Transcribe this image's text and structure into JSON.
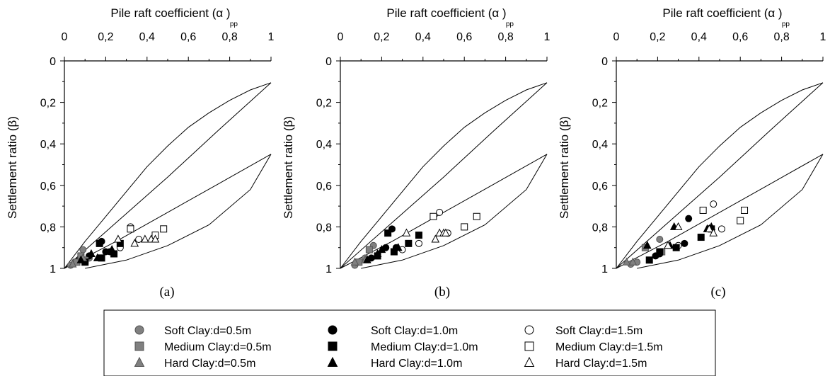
{
  "figure": {
    "xlabel_main": "Pile raft coefficient (α",
    "xlabel_sub": "pp",
    "xlabel_close": ")",
    "ylabel": "Settlement ratio (β)"
  },
  "legend": {
    "items": [
      {
        "label": "Soft Clay:d=0.5m",
        "marker": "circle",
        "fill": "#808080"
      },
      {
        "label": "Soft Clay:d=1.0m",
        "marker": "circle",
        "fill": "#000000"
      },
      {
        "label": "Soft Clay:d=1.5m",
        "marker": "circle",
        "fill": "#ffffff"
      },
      {
        "label": "Medium Clay:d=0.5m",
        "marker": "square",
        "fill": "#808080"
      },
      {
        "label": "Medium Clay:d=1.0m",
        "marker": "square",
        "fill": "#000000"
      },
      {
        "label": "Medium Clay:d=1.5m",
        "marker": "square",
        "fill": "#ffffff"
      },
      {
        "label": "Hard Clay:d=0.5m",
        "marker": "triangle",
        "fill": "#808080"
      },
      {
        "label": "Hard Clay:d=1.0m",
        "marker": "triangle",
        "fill": "#000000"
      },
      {
        "label": "Hard Clay:d=1.5m",
        "marker": "triangle",
        "fill": "#ffffff"
      }
    ]
  },
  "chart_data": [
    {
      "panel": "(a)",
      "type": "scatter",
      "xlabel": "Pile raft coefficient (αpp)",
      "ylabel": "Settlement ratio (β)",
      "xlim": [
        0,
        1
      ],
      "ylim": [
        0,
        1
      ],
      "y_inverted": true,
      "x_axis_position": "top",
      "xticks": [
        "0",
        "0,2",
        "0,4",
        "0,6",
        "0,8",
        "1"
      ],
      "yticks": [
        "0",
        "0,2",
        "0,4",
        "0,6",
        "0,8",
        "1"
      ],
      "envelope_curves": [
        {
          "x": [
            0,
            0.1,
            0.2,
            0.3,
            0.4,
            0.5,
            0.6,
            0.7,
            0.8,
            0.9,
            1.0
          ],
          "y": [
            1.0,
            0.87,
            0.75,
            0.63,
            0.51,
            0.41,
            0.32,
            0.25,
            0.19,
            0.14,
            0.105
          ]
        },
        {
          "x": [
            0,
            0.25,
            0.5,
            0.75,
            1.0
          ],
          "y": [
            1.0,
            0.78,
            0.56,
            0.33,
            0.105
          ]
        },
        {
          "x": [
            0,
            0.25,
            0.5,
            0.75,
            1.0
          ],
          "y": [
            1.0,
            0.87,
            0.73,
            0.59,
            0.45
          ]
        },
        {
          "x": [
            0.1,
            0.3,
            0.5,
            0.7,
            0.9,
            1.0
          ],
          "y": [
            1.0,
            0.96,
            0.89,
            0.79,
            0.62,
            0.45
          ]
        }
      ],
      "series": [
        {
          "name": "Soft Clay:d=0.5m",
          "x": [
            0.03,
            0.05,
            0.09,
            0.12
          ],
          "y": [
            0.985,
            0.97,
            0.91,
            0.95
          ]
        },
        {
          "name": "Soft Clay:d=1.0m",
          "x": [
            0.07,
            0.12,
            0.18,
            0.2,
            0.22
          ],
          "y": [
            0.96,
            0.94,
            0.87,
            0.92,
            0.92
          ]
        },
        {
          "name": "Soft Clay:d=1.5m",
          "x": [
            0.27,
            0.32,
            0.36
          ],
          "y": [
            0.9,
            0.8,
            0.86
          ]
        },
        {
          "name": "Medium Clay:d=0.5m",
          "x": [
            0.06,
            0.08,
            0.1
          ],
          "y": [
            0.97,
            0.94,
            0.96
          ]
        },
        {
          "name": "Medium Clay:d=1.0m",
          "x": [
            0.1,
            0.17,
            0.18,
            0.24,
            0.27
          ],
          "y": [
            0.97,
            0.88,
            0.95,
            0.93,
            0.88
          ]
        },
        {
          "name": "Medium Clay:d=1.5m",
          "x": [
            0.32,
            0.44,
            0.48
          ],
          "y": [
            0.81,
            0.84,
            0.81
          ]
        },
        {
          "name": "Hard Clay:d=0.5m",
          "x": [
            0.04,
            0.09
          ],
          "y": [
            0.98,
            0.95
          ]
        },
        {
          "name": "Hard Clay:d=1.0m",
          "x": [
            0.08,
            0.13,
            0.16,
            0.23
          ],
          "y": [
            0.96,
            0.93,
            0.95,
            0.91
          ]
        },
        {
          "name": "Hard Clay:d=1.5m",
          "x": [
            0.26,
            0.34,
            0.39,
            0.42,
            0.44
          ],
          "y": [
            0.86,
            0.88,
            0.86,
            0.86,
            0.86
          ]
        }
      ]
    },
    {
      "panel": "(b)",
      "type": "scatter",
      "xlabel": "Pile raft coefficient (αpp)",
      "ylabel": "Settlement ratio (β)",
      "xlim": [
        0,
        1
      ],
      "ylim": [
        0,
        1
      ],
      "y_inverted": true,
      "x_axis_position": "top",
      "xticks": [
        "0",
        "0,2",
        "0,4",
        "0,6",
        "0,8",
        "1"
      ],
      "yticks": [
        "0",
        "0,2",
        "0,4",
        "0,6",
        "0,8",
        "1"
      ],
      "envelope_curves": [
        {
          "x": [
            0,
            0.1,
            0.2,
            0.3,
            0.4,
            0.5,
            0.6,
            0.7,
            0.8,
            0.9,
            1.0
          ],
          "y": [
            1.0,
            0.87,
            0.75,
            0.63,
            0.51,
            0.41,
            0.32,
            0.25,
            0.19,
            0.14,
            0.105
          ]
        },
        {
          "x": [
            0,
            0.25,
            0.5,
            0.75,
            1.0
          ],
          "y": [
            1.0,
            0.78,
            0.56,
            0.33,
            0.105
          ]
        },
        {
          "x": [
            0,
            0.25,
            0.5,
            0.75,
            1.0
          ],
          "y": [
            1.0,
            0.87,
            0.73,
            0.59,
            0.45
          ]
        },
        {
          "x": [
            0.1,
            0.3,
            0.5,
            0.7,
            0.9,
            1.0
          ],
          "y": [
            1.0,
            0.96,
            0.89,
            0.79,
            0.62,
            0.45
          ]
        }
      ],
      "series": [
        {
          "name": "Soft Clay:d=0.5m",
          "x": [
            0.07,
            0.12,
            0.16
          ],
          "y": [
            0.985,
            0.95,
            0.89
          ]
        },
        {
          "name": "Soft Clay:d=1.0m",
          "x": [
            0.15,
            0.22,
            0.25,
            0.27
          ],
          "y": [
            0.95,
            0.9,
            0.81,
            0.9
          ]
        },
        {
          "name": "Soft Clay:d=1.5m",
          "x": [
            0.3,
            0.38,
            0.48,
            0.52
          ],
          "y": [
            0.91,
            0.88,
            0.73,
            0.83
          ]
        },
        {
          "name": "Medium Clay:d=0.5m",
          "x": [
            0.09,
            0.14
          ],
          "y": [
            0.97,
            0.91
          ]
        },
        {
          "name": "Medium Clay:d=1.0m",
          "x": [
            0.18,
            0.23,
            0.26,
            0.33,
            0.38
          ],
          "y": [
            0.94,
            0.83,
            0.92,
            0.88,
            0.84
          ]
        },
        {
          "name": "Medium Clay:d=1.5m",
          "x": [
            0.45,
            0.6,
            0.66
          ],
          "y": [
            0.75,
            0.8,
            0.75
          ]
        },
        {
          "name": "Hard Clay:d=0.5m",
          "x": [
            0.07,
            0.12
          ],
          "y": [
            0.97,
            0.96
          ]
        },
        {
          "name": "Hard Clay:d=1.0m",
          "x": [
            0.13,
            0.18,
            0.2,
            0.28
          ],
          "y": [
            0.96,
            0.93,
            0.91,
            0.9
          ]
        },
        {
          "name": "Hard Clay:d=1.5m",
          "x": [
            0.32,
            0.46,
            0.48,
            0.5,
            0.51
          ],
          "y": [
            0.83,
            0.86,
            0.83,
            0.83,
            0.83
          ]
        }
      ]
    },
    {
      "panel": "(c)",
      "type": "scatter",
      "xlabel": "Pile raft coefficient (αpp)",
      "ylabel": "Settlement ratio (β)",
      "xlim": [
        0,
        1
      ],
      "ylim": [
        0,
        1
      ],
      "y_inverted": true,
      "x_axis_position": "top",
      "xticks": [
        "0",
        "0,2",
        "0,4",
        "0,6",
        "0,8",
        "1"
      ],
      "yticks": [
        "0",
        "0,2",
        "0,4",
        "0,6",
        "0,8",
        "1"
      ],
      "envelope_curves": [
        {
          "x": [
            0,
            0.1,
            0.2,
            0.3,
            0.4,
            0.5,
            0.6,
            0.7,
            0.8,
            0.9,
            1.0
          ],
          "y": [
            1.0,
            0.87,
            0.75,
            0.63,
            0.51,
            0.41,
            0.32,
            0.25,
            0.19,
            0.14,
            0.105
          ]
        },
        {
          "x": [
            0,
            0.25,
            0.5,
            0.75,
            1.0
          ],
          "y": [
            1.0,
            0.78,
            0.56,
            0.33,
            0.105
          ]
        },
        {
          "x": [
            0,
            0.25,
            0.5,
            0.75,
            1.0
          ],
          "y": [
            1.0,
            0.87,
            0.73,
            0.59,
            0.45
          ]
        },
        {
          "x": [
            0.1,
            0.3,
            0.5,
            0.7,
            0.9,
            1.0
          ],
          "y": [
            1.0,
            0.96,
            0.89,
            0.79,
            0.62,
            0.45
          ]
        }
      ],
      "series": [
        {
          "name": "Soft Clay:d=0.5m",
          "x": [
            0.07,
            0.1,
            0.21
          ],
          "y": [
            0.98,
            0.97,
            0.86
          ]
        },
        {
          "name": "Soft Clay:d=1.0m",
          "x": [
            0.19,
            0.21,
            0.33,
            0.35
          ],
          "y": [
            0.94,
            0.93,
            0.88,
            0.76
          ]
        },
        {
          "name": "Soft Clay:d=1.5m",
          "x": [
            0.3,
            0.47,
            0.51
          ],
          "y": [
            0.89,
            0.69,
            0.81
          ]
        },
        {
          "name": "Medium Clay:d=0.5m",
          "x": [
            0.14,
            0.22
          ],
          "y": [
            0.9,
            0.92
          ]
        },
        {
          "name": "Medium Clay:d=1.0m",
          "x": [
            0.16,
            0.21,
            0.29,
            0.41,
            0.46
          ],
          "y": [
            0.96,
            0.92,
            0.9,
            0.85,
            0.81
          ]
        },
        {
          "name": "Medium Clay:d=1.5m",
          "x": [
            0.42,
            0.6,
            0.62
          ],
          "y": [
            0.72,
            0.77,
            0.72
          ]
        },
        {
          "name": "Hard Clay:d=0.5m",
          "x": [
            0.05,
            0.08
          ],
          "y": [
            0.97,
            0.97
          ]
        },
        {
          "name": "Hard Clay:d=1.0m",
          "x": [
            0.15,
            0.26,
            0.28,
            0.44,
            0.46
          ],
          "y": [
            0.89,
            0.89,
            0.8,
            0.81,
            0.8
          ]
        },
        {
          "name": "Hard Clay:d=1.5m",
          "x": [
            0.25,
            0.3,
            0.45,
            0.47
          ],
          "y": [
            0.89,
            0.8,
            0.81,
            0.83
          ]
        }
      ]
    }
  ]
}
